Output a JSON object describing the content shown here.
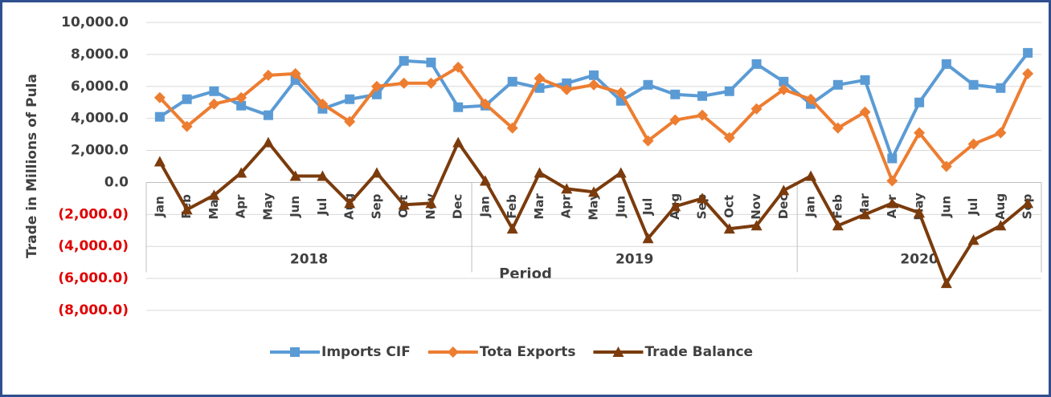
{
  "chart_data": {
    "type": "line",
    "y_axis_label": "Trade in Millions of Pula",
    "x_axis_label": "Period",
    "categories": [
      "Jan",
      "Feb",
      "Mar",
      "Apr",
      "May",
      "Jun",
      "Jul",
      "Aug",
      "Sep",
      "Oct",
      "Nov",
      "Dec",
      "Jan",
      "Feb",
      "Mar",
      "Apr",
      "May",
      "Jun",
      "Jul",
      "Aug",
      "Sep",
      "Oct",
      "Nov",
      "Dec",
      "Jan",
      "Feb",
      "Mar",
      "Apr",
      "May",
      "Jun",
      "Jul",
      "Aug",
      "Sep"
    ],
    "groups": [
      {
        "name": "2018",
        "count": 12
      },
      {
        "name": "2019",
        "count": 12
      },
      {
        "name": "2020",
        "count": 9
      }
    ],
    "series": [
      {
        "name": "Imports CIF",
        "color": "#5b9bd5",
        "marker": "square",
        "values": [
          4100,
          5200,
          5700,
          4800,
          4200,
          6400,
          4600,
          5200,
          5500,
          7600,
          7500,
          4700,
          4800,
          6300,
          5900,
          6200,
          6700,
          5100,
          6100,
          5500,
          5400,
          5700,
          7400,
          6300,
          4900,
          6100,
          6400,
          1500,
          5000,
          7400,
          6100,
          5900,
          8100
        ]
      },
      {
        "name": "Tota Exports",
        "color": "#ed7d31",
        "marker": "diamond",
        "values": [
          5300,
          3500,
          4900,
          5300,
          6700,
          6800,
          4900,
          3800,
          6000,
          6200,
          6200,
          7200,
          4900,
          3400,
          6500,
          5800,
          6100,
          5600,
          2600,
          3900,
          4200,
          2800,
          4600,
          5800,
          5200,
          3400,
          4400,
          100,
          3100,
          1000,
          2400,
          3100,
          6800
        ]
      },
      {
        "name": "Trade Balance",
        "color": "#7b3b0c",
        "marker": "triangle",
        "values": [
          1300,
          -1700,
          -800,
          600,
          2500,
          400,
          400,
          -1300,
          600,
          -1400,
          -1300,
          2500,
          100,
          -2900,
          600,
          -400,
          -600,
          600,
          -3500,
          -1500,
          -1000,
          -2900,
          -2700,
          -500,
          400,
          -2700,
          -2000,
          -1300,
          -1900,
          -6300,
          -3600,
          -2700,
          -1300
        ]
      }
    ],
    "ylim": [
      -8000,
      10000
    ],
    "yticks": [
      {
        "value": 10000,
        "label": "10,000.0"
      },
      {
        "value": 8000,
        "label": "8,000.0"
      },
      {
        "value": 6000,
        "label": "6,000.0"
      },
      {
        "value": 4000,
        "label": "4,000.0"
      },
      {
        "value": 2000,
        "label": "2,000.0"
      },
      {
        "value": 0,
        "label": "0.0"
      },
      {
        "value": -2000,
        "label": "(2,000.0)"
      },
      {
        "value": -4000,
        "label": "(4,000.0)"
      },
      {
        "value": -6000,
        "label": "(6,000.0)"
      },
      {
        "value": -8000,
        "label": "(8,000.0)"
      }
    ],
    "negative_label_color": "#e00000",
    "grid": true,
    "legend": "bottom"
  }
}
